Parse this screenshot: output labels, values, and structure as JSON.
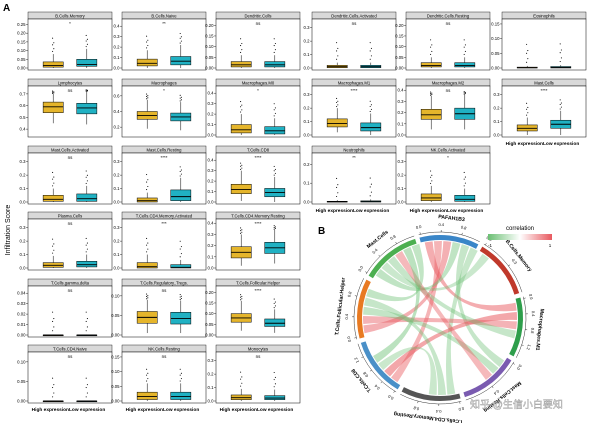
{
  "figure": {
    "panel_a_label": "A",
    "panel_b_label": "B",
    "y_axis_label": "Infiltration Score",
    "x_label_high": "High expression",
    "x_label_low": "Low expression",
    "watermark": "知乎 @生信小白要知"
  },
  "colors": {
    "high": "#E5B52B",
    "low": "#20B1C3",
    "strip": "#D9D9D9",
    "positive": "#E8595F",
    "negative": "#6BBF73"
  },
  "chart_data": [
    {
      "type": "box",
      "panel": "A",
      "groups": [
        "High expression",
        "Low expression"
      ],
      "facets": [
        {
          "name": "B.Cells.Memory",
          "sig": "*",
          "yticks": [
            "0.00",
            "0.05",
            "0.10",
            "0.15",
            "0.20",
            "0.25"
          ],
          "ylim": [
            0,
            0.27
          ],
          "high": {
            "q1": 0.005,
            "med": 0.015,
            "q3": 0.035,
            "whislo": 0,
            "whishi": 0.08
          },
          "low": {
            "q1": 0.01,
            "med": 0.02,
            "q3": 0.05,
            "whislo": 0,
            "whishi": 0.11
          }
        },
        {
          "name": "B.Cells.Naive",
          "sig": "**",
          "yticks": [
            "0.0",
            "0.1",
            "0.2",
            "0.3",
            "0.4"
          ],
          "ylim": [
            0,
            0.45
          ],
          "high": {
            "q1": 0.02,
            "med": 0.045,
            "q3": 0.085,
            "whislo": 0,
            "whishi": 0.17
          },
          "low": {
            "q1": 0.03,
            "med": 0.065,
            "q3": 0.11,
            "whislo": 0,
            "whishi": 0.22
          }
        },
        {
          "name": "Dendritic.Cells",
          "sig": "ns",
          "yticks": [
            "0.00",
            "0.05",
            "0.10",
            "0.15",
            "0.20"
          ],
          "ylim": [
            0,
            0.22
          ],
          "high": {
            "q1": 0.005,
            "med": 0.015,
            "q3": 0.03,
            "whislo": 0,
            "whishi": 0.06
          },
          "low": {
            "q1": 0.005,
            "med": 0.015,
            "q3": 0.03,
            "whislo": 0,
            "whishi": 0.06
          }
        },
        {
          "name": "Dendritic.Cells.Activated",
          "sig": "ns",
          "yticks": [
            "0.0",
            "0.1",
            "0.2",
            "0.3"
          ],
          "ylim": [
            0,
            0.35
          ],
          "high": {
            "q1": 0.002,
            "med": 0.01,
            "q3": 0.02,
            "whislo": 0,
            "whishi": 0.04
          },
          "low": {
            "q1": 0.002,
            "med": 0.01,
            "q3": 0.02,
            "whislo": 0,
            "whishi": 0.04
          }
        },
        {
          "name": "Dendritic.Cells.Resting",
          "sig": "ns",
          "yticks": [
            "0.00",
            "0.05",
            "0.10",
            "0.15",
            "0.20"
          ],
          "ylim": [
            0,
            0.22
          ],
          "high": {
            "q1": 0.005,
            "med": 0.012,
            "q3": 0.025,
            "whislo": 0,
            "whishi": 0.05
          },
          "low": {
            "q1": 0.005,
            "med": 0.012,
            "q3": 0.025,
            "whislo": 0,
            "whishi": 0.05
          }
        },
        {
          "name": "Eosinophils",
          "sig": "",
          "yticks": [
            "0.00",
            "0.05",
            "0.10",
            "0.15"
          ],
          "ylim": [
            0,
            0.16
          ],
          "high": {
            "q1": 0,
            "med": 0.001,
            "q3": 0.003,
            "whislo": 0,
            "whishi": 0.007
          },
          "low": {
            "q1": 0,
            "med": 0.002,
            "q3": 0.005,
            "whislo": 0,
            "whishi": 0.01
          }
        },
        {
          "name": "Lymphocytes",
          "sig": "ns",
          "yticks": [
            "0.4",
            "0.5",
            "0.6",
            "0.7"
          ],
          "ylim": [
            0.35,
            0.75
          ],
          "high": {
            "q1": 0.54,
            "med": 0.59,
            "q3": 0.63,
            "whislo": 0.45,
            "whishi": 0.7
          },
          "low": {
            "q1": 0.53,
            "med": 0.58,
            "q3": 0.62,
            "whislo": 0.44,
            "whishi": 0.72
          }
        },
        {
          "name": "Macrophages",
          "sig": "*",
          "yticks": [
            "0.2",
            "0.4",
            "0.6"
          ],
          "ylim": [
            0.1,
            0.7
          ],
          "high": {
            "q1": 0.3,
            "med": 0.35,
            "q3": 0.4,
            "whislo": 0.18,
            "whishi": 0.55
          },
          "low": {
            "q1": 0.28,
            "med": 0.33,
            "q3": 0.38,
            "whislo": 0.16,
            "whishi": 0.52
          }
        },
        {
          "name": "Macrophages.M0",
          "sig": "*",
          "yticks": [
            "0.0",
            "0.1",
            "0.2",
            "0.3",
            "0.4"
          ],
          "ylim": [
            0,
            0.45
          ],
          "high": {
            "q1": 0.02,
            "med": 0.05,
            "q3": 0.1,
            "whislo": 0,
            "whishi": 0.2
          },
          "low": {
            "q1": 0.01,
            "med": 0.04,
            "q3": 0.08,
            "whislo": 0,
            "whishi": 0.16
          }
        },
        {
          "name": "Macrophages.M1",
          "sig": "****",
          "yticks": [
            "0.0",
            "0.1",
            "0.2",
            "0.3"
          ],
          "ylim": [
            0,
            0.35
          ],
          "high": {
            "q1": 0.06,
            "med": 0.085,
            "q3": 0.12,
            "whislo": 0.02,
            "whishi": 0.2
          },
          "low": {
            "q1": 0.03,
            "med": 0.055,
            "q3": 0.09,
            "whislo": 0,
            "whishi": 0.16
          }
        },
        {
          "name": "Macrophages.M2",
          "sig": "ns",
          "yticks": [
            "0.0",
            "0.1",
            "0.2",
            "0.3",
            "0.4"
          ],
          "ylim": [
            0,
            0.42
          ],
          "high": {
            "q1": 0.14,
            "med": 0.18,
            "q3": 0.23,
            "whislo": 0.05,
            "whishi": 0.35
          },
          "low": {
            "q1": 0.14,
            "med": 0.19,
            "q3": 0.24,
            "whislo": 0.05,
            "whishi": 0.36
          }
        },
        {
          "name": "Mast.Cells",
          "sig": "****",
          "yticks": [
            "0.0",
            "0.1",
            "0.2",
            "0.3"
          ],
          "ylim": [
            0,
            0.35
          ],
          "high": {
            "q1": 0.03,
            "med": 0.05,
            "q3": 0.075,
            "whislo": 0,
            "whishi": 0.13
          },
          "low": {
            "q1": 0.05,
            "med": 0.08,
            "q3": 0.11,
            "whislo": 0,
            "whishi": 0.18
          }
        },
        {
          "name": "Mast.Cells.Activated",
          "sig": "ns",
          "yticks": [
            "0.0",
            "0.1",
            "0.2",
            "0.3"
          ],
          "ylim": [
            0,
            0.35
          ],
          "high": {
            "q1": 0.005,
            "med": 0.02,
            "q3": 0.05,
            "whislo": 0,
            "whishi": 0.1
          },
          "low": {
            "q1": 0.005,
            "med": 0.025,
            "q3": 0.06,
            "whislo": 0,
            "whishi": 0.12
          }
        },
        {
          "name": "Mast.Cells.Resting",
          "sig": "****",
          "yticks": [
            "0.0",
            "0.1",
            "0.2",
            "0.3"
          ],
          "ylim": [
            0,
            0.35
          ],
          "high": {
            "q1": 0,
            "med": 0.01,
            "q3": 0.03,
            "whislo": 0,
            "whishi": 0.07
          },
          "low": {
            "q1": 0.01,
            "med": 0.04,
            "q3": 0.09,
            "whislo": 0,
            "whishi": 0.18
          }
        },
        {
          "name": "T.Cells.CD8",
          "sig": "****",
          "yticks": [
            "0.0",
            "0.1",
            "0.2",
            "0.3",
            "0.4"
          ],
          "ylim": [
            0,
            0.45
          ],
          "high": {
            "q1": 0.08,
            "med": 0.12,
            "q3": 0.17,
            "whislo": 0.01,
            "whishi": 0.3
          },
          "low": {
            "q1": 0.05,
            "med": 0.09,
            "q3": 0.13,
            "whislo": 0,
            "whishi": 0.24
          }
        },
        {
          "name": "Neutrophils",
          "sig": "**",
          "yticks": [
            "0.0",
            "0.1",
            "0.2"
          ],
          "ylim": [
            0,
            0.25
          ],
          "high": {
            "q1": 0,
            "med": 0.001,
            "q3": 0.004,
            "whislo": 0,
            "whishi": 0.01
          },
          "low": {
            "q1": 0,
            "med": 0.002,
            "q3": 0.006,
            "whislo": 0,
            "whishi": 0.014
          }
        },
        {
          "name": "NK.Cells.Activated",
          "sig": "*",
          "yticks": [
            "0.0",
            "0.1",
            "0.2",
            "0.3"
          ],
          "ylim": [
            0,
            0.35
          ],
          "high": {
            "q1": 0.01,
            "med": 0.03,
            "q3": 0.06,
            "whislo": 0,
            "whishi": 0.12
          },
          "low": {
            "q1": 0.005,
            "med": 0.02,
            "q3": 0.05,
            "whislo": 0,
            "whishi": 0.1
          }
        },
        {
          "name": "Plasma.Cells",
          "sig": "ns",
          "yticks": [
            "0.0",
            "0.1",
            "0.2",
            "0.3"
          ],
          "ylim": [
            0,
            0.35
          ],
          "high": {
            "q1": 0.005,
            "med": 0.02,
            "q3": 0.04,
            "whislo": 0,
            "whishi": 0.09
          },
          "low": {
            "q1": 0.008,
            "med": 0.025,
            "q3": 0.05,
            "whislo": 0,
            "whishi": 0.1
          }
        },
        {
          "name": "T.Cells.CD4.Memory.Activated",
          "sig": "***",
          "yticks": [
            "0.0",
            "0.1",
            "0.2",
            "0.3"
          ],
          "ylim": [
            0,
            0.35
          ],
          "high": {
            "q1": 0,
            "med": 0.01,
            "q3": 0.04,
            "whislo": 0,
            "whishi": 0.1
          },
          "low": {
            "q1": 0,
            "med": 0.005,
            "q3": 0.025,
            "whislo": 0,
            "whishi": 0.06
          }
        },
        {
          "name": "T.Cells.CD4.Memory.Resting",
          "sig": "****",
          "yticks": [
            "0.0",
            "0.1",
            "0.2",
            "0.3",
            "0.4"
          ],
          "ylim": [
            0,
            0.42
          ],
          "high": {
            "q1": 0.09,
            "med": 0.14,
            "q3": 0.19,
            "whislo": 0.02,
            "whishi": 0.3
          },
          "low": {
            "q1": 0.13,
            "med": 0.18,
            "q3": 0.23,
            "whislo": 0.04,
            "whishi": 0.34
          }
        },
        {
          "name": "T.Cells.gamma.delta",
          "sig": "ns",
          "yticks": [
            "0.00",
            "0.01",
            "0.02",
            "0.03",
            "0.04"
          ],
          "ylim": [
            0,
            0.045
          ],
          "high": {
            "q1": 0,
            "med": 0,
            "q3": 0,
            "whislo": 0,
            "whishi": 0.0005
          },
          "low": {
            "q1": 0,
            "med": 0,
            "q3": 0,
            "whislo": 0,
            "whishi": 0.0005
          }
        },
        {
          "name": "T.Cells.Regulatory..Tregs.",
          "sig": "ns",
          "yticks": [
            "0.00",
            "0.05",
            "0.10"
          ],
          "ylim": [
            0,
            0.12
          ],
          "high": {
            "q1": 0.03,
            "med": 0.045,
            "q3": 0.06,
            "whislo": 0.005,
            "whishi": 0.09
          },
          "low": {
            "q1": 0.028,
            "med": 0.042,
            "q3": 0.058,
            "whislo": 0.005,
            "whishi": 0.088
          }
        },
        {
          "name": "T.Cells.Follicular.Helper",
          "sig": "****",
          "yticks": [
            "0.00",
            "0.05",
            "0.10",
            "0.15",
            "0.20"
          ],
          "ylim": [
            0,
            0.22
          ],
          "high": {
            "q1": 0.06,
            "med": 0.08,
            "q3": 0.1,
            "whislo": 0.02,
            "whishi": 0.16
          },
          "low": {
            "q1": 0.04,
            "med": 0.055,
            "q3": 0.075,
            "whislo": 0.01,
            "whishi": 0.12
          }
        },
        {
          "name": "T.Cells.CD4.Naive",
          "sig": "ns",
          "yticks": [
            "0.00",
            "0.05",
            "0.10"
          ],
          "ylim": [
            0,
            0.12
          ],
          "high": {
            "q1": 0,
            "med": 0,
            "q3": 0,
            "whislo": 0,
            "whishi": 0.001
          },
          "low": {
            "q1": 0,
            "med": 0,
            "q3": 0,
            "whislo": 0,
            "whishi": 0.001
          }
        },
        {
          "name": "NK.Cells.Resting",
          "sig": "ns",
          "yticks": [
            "0.00",
            "0.05",
            "0.10",
            "0.15"
          ],
          "ylim": [
            0,
            0.16
          ],
          "high": {
            "q1": 0.005,
            "med": 0.015,
            "q3": 0.03,
            "whislo": 0,
            "whishi": 0.06
          },
          "low": {
            "q1": 0.005,
            "med": 0.015,
            "q3": 0.03,
            "whislo": 0,
            "whishi": 0.06
          }
        },
        {
          "name": "Monocytes",
          "sig": "ns",
          "yticks": [
            "0.0",
            "0.1",
            "0.2",
            "0.3"
          ],
          "ylim": [
            0,
            0.35
          ],
          "high": {
            "q1": 0.01,
            "med": 0.025,
            "q3": 0.045,
            "whislo": 0,
            "whishi": 0.09
          },
          "low": {
            "q1": 0.01,
            "med": 0.022,
            "q3": 0.04,
            "whislo": 0,
            "whishi": 0.085
          }
        }
      ]
    },
    {
      "type": "chord",
      "panel": "B",
      "legend_title": "correlation",
      "legend_ticks": [
        "-1",
        "1"
      ],
      "sectors": [
        {
          "name": "PAFAH1B3",
          "color": "#3A86C8",
          "ticks": [
            "0.0",
            "0.4",
            "0.8"
          ]
        },
        {
          "name": "B.Cells.Memory",
          "color": "#C0392B",
          "ticks": [
            "0.0",
            "0.3"
          ]
        },
        {
          "name": "Macrophages.M1",
          "color": "#2E9E4B",
          "ticks": [
            "0.0",
            "0.4",
            "0.8",
            "1.2"
          ]
        },
        {
          "name": "Mast.Cells.Resting",
          "color": "#7A5BB0",
          "ticks": [
            "0.0",
            "0.4"
          ]
        },
        {
          "name": "T.Cells.CD4.Memory.Resting",
          "color": "#555555",
          "ticks": [
            "0.0",
            "0.4",
            "0.8"
          ]
        },
        {
          "name": "T.Cells.CD8",
          "color": "#4A90C8",
          "ticks": [
            "0.0",
            "0.4",
            "0.8",
            "1.2"
          ]
        },
        {
          "name": "T.Cells.Follicular.Helper",
          "color": "#E87A22",
          "ticks": [
            "0.0",
            "0.4",
            "0.8"
          ]
        },
        {
          "name": "Mast.Cells",
          "color": "#4CAF50",
          "ticks": [
            "0.0",
            "0.4",
            "0.8"
          ]
        }
      ],
      "links": [
        {
          "from": 0,
          "to": 2,
          "value": 0.45
        },
        {
          "from": 0,
          "to": 5,
          "value": 0.38
        },
        {
          "from": 0,
          "to": 6,
          "value": 0.42
        },
        {
          "from": 0,
          "to": 7,
          "value": -0.35
        },
        {
          "from": 0,
          "to": 3,
          "value": -0.3
        },
        {
          "from": 0,
          "to": 4,
          "value": -0.28
        },
        {
          "from": 1,
          "to": 7,
          "value": -0.25
        },
        {
          "from": 2,
          "to": 5,
          "value": 0.5
        },
        {
          "from": 2,
          "to": 6,
          "value": 0.4
        },
        {
          "from": 2,
          "to": 7,
          "value": -0.3
        },
        {
          "from": 3,
          "to": 6,
          "value": -0.32
        },
        {
          "from": 3,
          "to": 7,
          "value": 0.35
        },
        {
          "from": 4,
          "to": 6,
          "value": -0.3
        },
        {
          "from": 4,
          "to": 5,
          "value": -0.26
        },
        {
          "from": 5,
          "to": 7,
          "value": -0.4
        },
        {
          "from": 6,
          "to": 7,
          "value": -0.33
        }
      ]
    }
  ]
}
